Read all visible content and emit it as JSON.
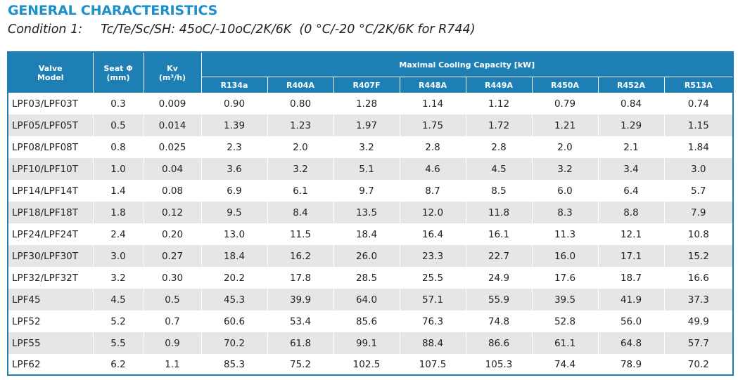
{
  "title": "GENERAL CHARACTERISTICS",
  "condition": {
    "label": "Condition 1:",
    "text": "Tc/Te/Sc/SH: 45oC/-10oC/2K/6K  (0 °C/-20 °C/2K/6K for R744)"
  },
  "table": {
    "headers": {
      "model_line1": "Valve",
      "model_line2": "Model",
      "seat_line1": "Seat Φ",
      "seat_line2": "(mm)",
      "kv_line1": "Kv",
      "kv_line2": "(m³/h)",
      "capacity": "Maximal Cooling Capacity [kW]"
    },
    "refrigerants": [
      "R134a",
      "R404A",
      "R407F",
      "R448A",
      "R449A",
      "R450A",
      "R452A",
      "R513A"
    ],
    "rows": [
      [
        "LPF03/LPF03T",
        "0.3",
        "0.009",
        "0.90",
        "0.80",
        "1.28",
        "1.14",
        "1.12",
        "0.79",
        "0.84",
        "0.74"
      ],
      [
        "LPF05/LPF05T",
        "0.5",
        "0.014",
        "1.39",
        "1.23",
        "1.97",
        "1.75",
        "1.72",
        "1.21",
        "1.29",
        "1.15"
      ],
      [
        "LPF08/LPF08T",
        "0.8",
        "0.025",
        "2.3",
        "2.0",
        "3.2",
        "2.8",
        "2.8",
        "2.0",
        "2.1",
        "1.84"
      ],
      [
        "LPF10/LPF10T",
        "1.0",
        "0.04",
        "3.6",
        "3.2",
        "5.1",
        "4.6",
        "4.5",
        "3.2",
        "3.4",
        "3.0"
      ],
      [
        "LPF14/LPF14T",
        "1.4",
        "0.08",
        "6.9",
        "6.1",
        "9.7",
        "8.7",
        "8.5",
        "6.0",
        "6.4",
        "5.7"
      ],
      [
        "LPF18/LPF18T",
        "1.8",
        "0.12",
        "9.5",
        "8.4",
        "13.5",
        "12.0",
        "11.8",
        "8.3",
        "8.8",
        "7.9"
      ],
      [
        "LPF24/LPF24T",
        "2.4",
        "0.20",
        "13.0",
        "11.5",
        "18.4",
        "16.4",
        "16.1",
        "11.3",
        "12.1",
        "10.8"
      ],
      [
        "LPF30/LPF30T",
        "3.0",
        "0.27",
        "18.4",
        "16.2",
        "26.0",
        "23.3",
        "22.7",
        "16.0",
        "17.1",
        "15.2"
      ],
      [
        "LPF32/LPF32T",
        "3.2",
        "0.30",
        "20.2",
        "17.8",
        "28.5",
        "25.5",
        "24.9",
        "17.6",
        "18.7",
        "16.6"
      ],
      [
        "LPF45",
        "4.5",
        "0.5",
        "45.3",
        "39.9",
        "64.0",
        "57.1",
        "55.9",
        "39.5",
        "41.9",
        "37.3"
      ],
      [
        "LPF52",
        "5.2",
        "0.7",
        "60.6",
        "53.4",
        "85.6",
        "76.3",
        "74.8",
        "52.8",
        "56.0",
        "49.9"
      ],
      [
        "LPF55",
        "5.5",
        "0.9",
        "70.2",
        "61.8",
        "99.1",
        "88.4",
        "86.6",
        "61.1",
        "64.8",
        "57.7"
      ],
      [
        "LPF62",
        "6.2",
        "1.1",
        "85.3",
        "75.2",
        "102.5",
        "107.5",
        "105.3",
        "74.4",
        "78.9",
        "70.2"
      ]
    ]
  },
  "colors": {
    "title": "#1f8fc9",
    "header_bg": "#1e7fb5",
    "row_alt_bg": "#e6e6e6"
  }
}
